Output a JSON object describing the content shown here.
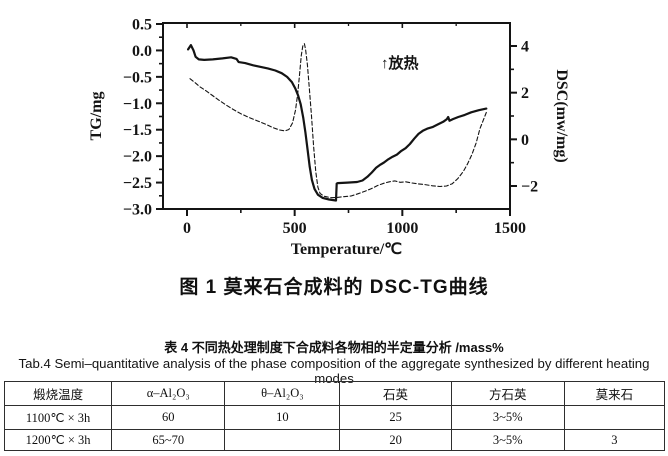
{
  "figure": {
    "caption": "图 1  莫来石合成料的 DSC-TG曲线"
  },
  "chart_data": {
    "type": "line",
    "title": "图 1 莫来石合成料的 DSC-TG曲线",
    "xlabel": "Temperature/℃",
    "annotation": "↑放热",
    "grid": false,
    "legend": "none",
    "x_axis": {
      "lim": [
        0,
        1500
      ],
      "ticks": [
        0,
        500,
        1000,
        1500
      ],
      "minor_ticks": [
        250,
        750,
        1250
      ]
    },
    "left_axis": {
      "label": "TG/mg",
      "lim": [
        0.5,
        -3.0
      ],
      "ticks": [
        0.5,
        0.0,
        -0.5,
        -1.0,
        -1.5,
        -2.0,
        -2.5,
        -3.0
      ],
      "minor_ticks": [
        0.25,
        -0.25,
        -0.75,
        -1.25,
        -1.75,
        -2.25,
        -2.75
      ]
    },
    "right_axis": {
      "label": "DSC(mw/mg)",
      "lim": [
        5,
        -3
      ],
      "ticks": [
        4,
        2,
        0,
        -2
      ],
      "minor_ticks": [
        3,
        1,
        -1
      ]
    },
    "series": [
      {
        "name": "TG",
        "axis": "left",
        "style": "solid",
        "points": [
          [
            5,
            0.02
          ],
          [
            18,
            0.1
          ],
          [
            30,
            0.0
          ],
          [
            40,
            -0.12
          ],
          [
            55,
            -0.17
          ],
          [
            80,
            -0.18
          ],
          [
            120,
            -0.17
          ],
          [
            165,
            -0.15
          ],
          [
            205,
            -0.13
          ],
          [
            230,
            -0.16
          ],
          [
            240,
            -0.22
          ],
          [
            270,
            -0.24
          ],
          [
            305,
            -0.28
          ],
          [
            340,
            -0.31
          ],
          [
            375,
            -0.34
          ],
          [
            410,
            -0.38
          ],
          [
            440,
            -0.43
          ],
          [
            465,
            -0.5
          ],
          [
            487,
            -0.6
          ],
          [
            503,
            -0.72
          ],
          [
            516,
            -0.85
          ],
          [
            528,
            -1.02
          ],
          [
            540,
            -1.28
          ],
          [
            550,
            -1.55
          ],
          [
            560,
            -1.88
          ],
          [
            570,
            -2.2
          ],
          [
            580,
            -2.45
          ],
          [
            592,
            -2.62
          ],
          [
            608,
            -2.73
          ],
          [
            630,
            -2.79
          ],
          [
            660,
            -2.82
          ],
          [
            692,
            -2.84
          ],
          [
            695,
            -2.52
          ],
          [
            700,
            -2.51
          ],
          [
            745,
            -2.5
          ],
          [
            790,
            -2.49
          ],
          [
            815,
            -2.46
          ],
          [
            838,
            -2.39
          ],
          [
            858,
            -2.31
          ],
          [
            878,
            -2.22
          ],
          [
            895,
            -2.17
          ],
          [
            915,
            -2.12
          ],
          [
            935,
            -2.06
          ],
          [
            955,
            -2.01
          ],
          [
            975,
            -1.97
          ],
          [
            995,
            -1.9
          ],
          [
            1015,
            -1.85
          ],
          [
            1035,
            -1.77
          ],
          [
            1055,
            -1.67
          ],
          [
            1075,
            -1.58
          ],
          [
            1095,
            -1.52
          ],
          [
            1115,
            -1.48
          ],
          [
            1140,
            -1.45
          ],
          [
            1165,
            -1.4
          ],
          [
            1190,
            -1.35
          ],
          [
            1207,
            -1.3
          ],
          [
            1213,
            -1.26
          ],
          [
            1219,
            -1.33
          ],
          [
            1235,
            -1.3
          ],
          [
            1260,
            -1.26
          ],
          [
            1290,
            -1.22
          ],
          [
            1320,
            -1.17
          ],
          [
            1355,
            -1.13
          ],
          [
            1390,
            -1.1
          ]
        ]
      },
      {
        "name": "DSC",
        "axis": "right",
        "style": "dashed",
        "points": [
          [
            14,
            2.6
          ],
          [
            35,
            2.45
          ],
          [
            60,
            2.25
          ],
          [
            85,
            2.1
          ],
          [
            115,
            1.9
          ],
          [
            145,
            1.7
          ],
          [
            180,
            1.48
          ],
          [
            215,
            1.28
          ],
          [
            250,
            1.1
          ],
          [
            285,
            0.95
          ],
          [
            325,
            0.8
          ],
          [
            365,
            0.65
          ],
          [
            400,
            0.5
          ],
          [
            430,
            0.4
          ],
          [
            455,
            0.36
          ],
          [
            473,
            0.42
          ],
          [
            490,
            0.7
          ],
          [
            504,
            1.25
          ],
          [
            514,
            1.95
          ],
          [
            523,
            2.8
          ],
          [
            531,
            3.6
          ],
          [
            538,
            4.0
          ],
          [
            545,
            4.1
          ],
          [
            551,
            3.85
          ],
          [
            559,
            3.2
          ],
          [
            568,
            2.2
          ],
          [
            578,
            1.0
          ],
          [
            588,
            -0.3
          ],
          [
            598,
            -1.4
          ],
          [
            608,
            -2.05
          ],
          [
            618,
            -2.32
          ],
          [
            638,
            -2.44
          ],
          [
            668,
            -2.5
          ],
          [
            698,
            -2.49
          ],
          [
            728,
            -2.46
          ],
          [
            762,
            -2.43
          ],
          [
            795,
            -2.33
          ],
          [
            825,
            -2.23
          ],
          [
            855,
            -2.12
          ],
          [
            885,
            -1.98
          ],
          [
            915,
            -1.88
          ],
          [
            940,
            -1.82
          ],
          [
            965,
            -1.78
          ],
          [
            990,
            -1.84
          ],
          [
            1015,
            -1.82
          ],
          [
            1045,
            -1.87
          ],
          [
            1075,
            -1.91
          ],
          [
            1105,
            -1.94
          ],
          [
            1140,
            -1.99
          ],
          [
            1175,
            -2.02
          ],
          [
            1205,
            -2.0
          ],
          [
            1232,
            -1.9
          ],
          [
            1258,
            -1.68
          ],
          [
            1283,
            -1.38
          ],
          [
            1303,
            -1.05
          ],
          [
            1323,
            -0.65
          ],
          [
            1343,
            -0.15
          ],
          [
            1360,
            0.45
          ],
          [
            1390,
            1.15
          ]
        ]
      }
    ]
  },
  "table": {
    "title_zh": "表 4  不同热处理制度下合成料各物相的半定量分析 /mass%",
    "title_en": "Tab.4 Semi–quantitative analysis of the phase composition of the aggregate synthesized by different heating modes",
    "headers": [
      "煅烧温度",
      "α–Al₂O₃",
      "θ–Al₂O₃",
      "石英",
      "方石英",
      "莫来石"
    ],
    "rows": [
      [
        "1100℃ × 3h",
        "60",
        "10",
        "25",
        "3~5%",
        ""
      ],
      [
        "1200℃ × 3h",
        "65~70",
        "",
        "20",
        "3~5%",
        "3"
      ]
    ]
  }
}
